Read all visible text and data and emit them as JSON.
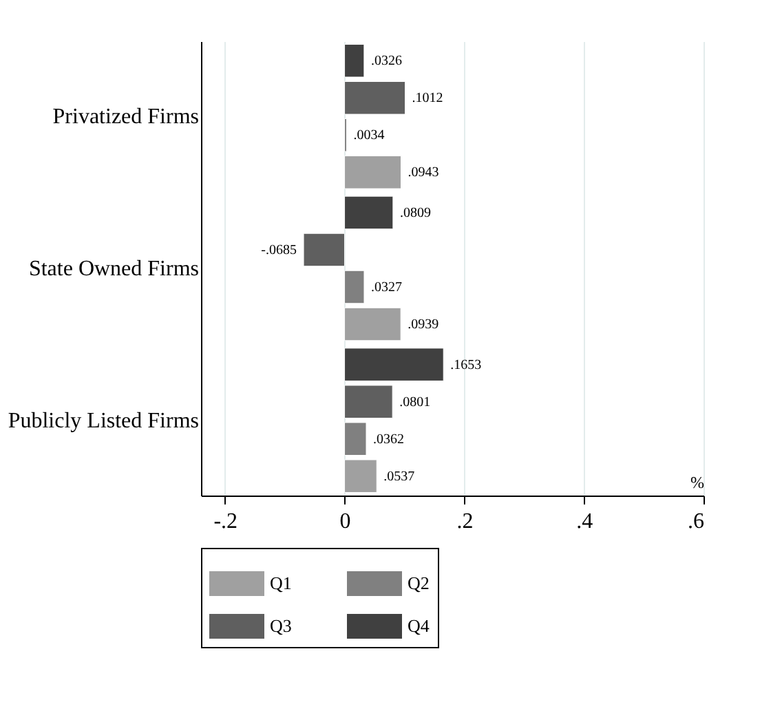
{
  "chart_data": {
    "type": "bar",
    "orientation": "horizontal",
    "categories": [
      "Privatized Firms",
      "State Owned Firms",
      "Publicly Listed Firms"
    ],
    "series": [
      {
        "name": "Q1",
        "color": "#a0a0a0",
        "values": [
          0.0943,
          0.0939,
          0.0537
        ],
        "value_labels": [
          ".0943",
          ".0939",
          ".0537"
        ]
      },
      {
        "name": "Q2",
        "color": "#808080",
        "values": [
          0.0034,
          0.0327,
          0.0362
        ],
        "value_labels": [
          ".0034",
          ".0327",
          ".0362"
        ]
      },
      {
        "name": "Q3",
        "color": "#5f5f5f",
        "values": [
          0.1012,
          -0.0685,
          0.0801
        ],
        "value_labels": [
          ".1012",
          "-.0685",
          ".0801"
        ]
      },
      {
        "name": "Q4",
        "color": "#404040",
        "values": [
          0.0326,
          0.0809,
          0.1653
        ],
        "value_labels": [
          ".0326",
          ".0809",
          ".1653"
        ]
      }
    ],
    "xlabel": "%",
    "xlim": [
      -0.24,
      0.6
    ],
    "xticks": [
      {
        "value": -0.2,
        "label": "-.2"
      },
      {
        "value": 0,
        "label": "0"
      },
      {
        "value": 0.2,
        "label": ".2"
      },
      {
        "value": 0.4,
        "label": ".4"
      },
      {
        "value": 0.6,
        "label": ".6"
      }
    ],
    "grid": "x",
    "legend": "bottom"
  }
}
